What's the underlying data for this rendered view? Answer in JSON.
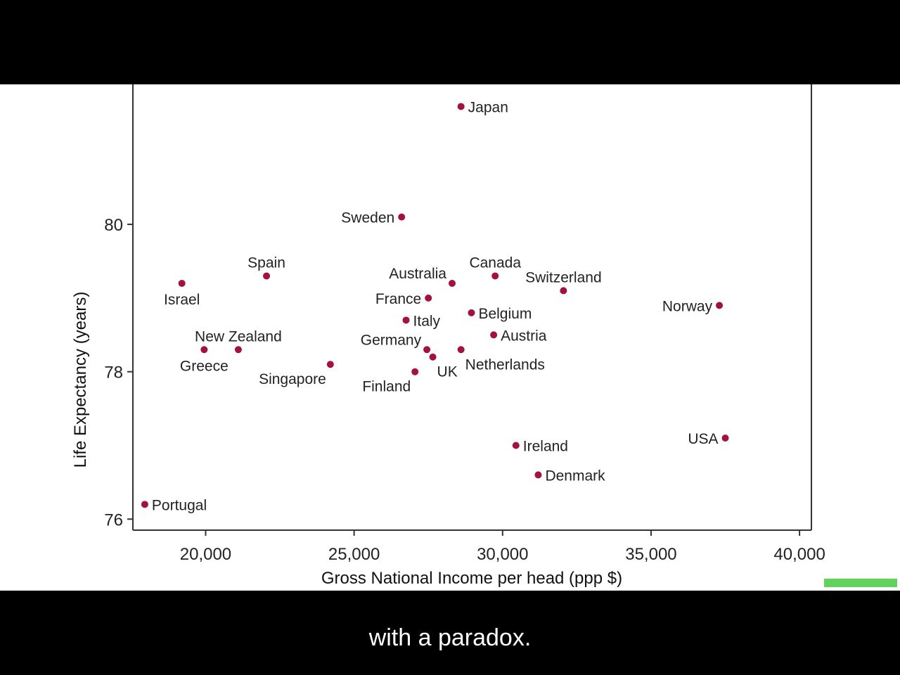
{
  "caption": "with a paradox.",
  "colors": {
    "marker": "#a3123f",
    "progress": "#5fd35a",
    "axis": "#333333"
  },
  "chart_data": {
    "type": "scatter",
    "xlabel": "Gross National Income per head (ppp $)",
    "ylabel": "Life Expectancy (years)",
    "xlim": [
      17550,
      40400
    ],
    "ylim": [
      75.85,
      81.9
    ],
    "xticks": [
      20000,
      25000,
      30000,
      35000,
      40000
    ],
    "xtick_labels": [
      "20,000",
      "25,000",
      "30,000",
      "35,000",
      "40,000"
    ],
    "yticks": [
      76,
      78,
      80
    ],
    "ytick_labels": [
      "76",
      "78",
      "80"
    ],
    "grid": false,
    "points": [
      {
        "label": "Japan",
        "x": 28600,
        "y": 81.6,
        "pos": "right"
      },
      {
        "label": "Sweden",
        "x": 26600,
        "y": 80.1,
        "pos": "left"
      },
      {
        "label": "Spain",
        "x": 22050,
        "y": 79.3,
        "pos": "above"
      },
      {
        "label": "Israel",
        "x": 19200,
        "y": 79.2,
        "pos": "below"
      },
      {
        "label": "Australia",
        "x": 28300,
        "y": 79.2,
        "pos": "upleft"
      },
      {
        "label": "Canada",
        "x": 29750,
        "y": 79.3,
        "pos": "above"
      },
      {
        "label": "Switzerland",
        "x": 32050,
        "y": 79.1,
        "pos": "above"
      },
      {
        "label": "France",
        "x": 27500,
        "y": 79.0,
        "pos": "left"
      },
      {
        "label": "Norway",
        "x": 37300,
        "y": 78.9,
        "pos": "left"
      },
      {
        "label": "Belgium",
        "x": 28950,
        "y": 78.8,
        "pos": "right"
      },
      {
        "label": "Italy",
        "x": 26750,
        "y": 78.7,
        "pos": "right"
      },
      {
        "label": "Austria",
        "x": 29700,
        "y": 78.5,
        "pos": "right"
      },
      {
        "label": "New Zealand",
        "x": 21100,
        "y": 78.3,
        "pos": "above"
      },
      {
        "label": "Greece",
        "x": 19950,
        "y": 78.3,
        "pos": "below"
      },
      {
        "label": "Germany",
        "x": 27450,
        "y": 78.3,
        "pos": "upleft"
      },
      {
        "label": "Netherlands",
        "x": 28600,
        "y": 78.3,
        "pos": "lowright"
      },
      {
        "label": "UK",
        "x": 27650,
        "y": 78.2,
        "pos": "lowright"
      },
      {
        "label": "Singapore",
        "x": 24200,
        "y": 78.1,
        "pos": "lowleft"
      },
      {
        "label": "Finland",
        "x": 27050,
        "y": 78.0,
        "pos": "lowleft"
      },
      {
        "label": "Ireland",
        "x": 30450,
        "y": 77.0,
        "pos": "right"
      },
      {
        "label": "USA",
        "x": 37500,
        "y": 77.1,
        "pos": "left"
      },
      {
        "label": "Denmark",
        "x": 31200,
        "y": 76.6,
        "pos": "right"
      },
      {
        "label": "Portugal",
        "x": 17950,
        "y": 76.2,
        "pos": "right"
      }
    ]
  }
}
